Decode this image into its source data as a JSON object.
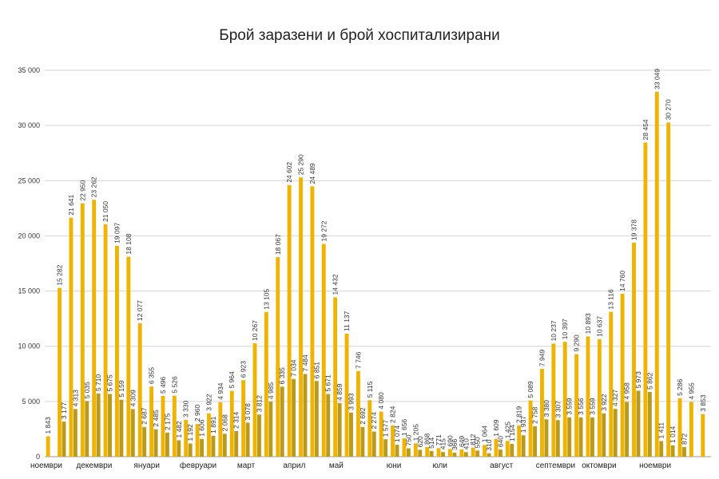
{
  "chart_data": {
    "type": "bar",
    "title": "Брой заразени и брой хоспитализирани",
    "xlabel": "",
    "ylabel": "",
    "ylim": [
      0,
      35000
    ],
    "yticks": [
      0,
      5000,
      10000,
      15000,
      20000,
      25000,
      30000,
      35000
    ],
    "ytick_labels": [
      "0",
      "5 000",
      "10 000",
      "15 000",
      "20 000",
      "25 000",
      "30 000",
      "35 000"
    ],
    "grid": true,
    "legend": "none",
    "series": [
      {
        "name": "Брой заразени",
        "color": "#f0b400",
        "values": [
          1843,
          15282,
          21641,
          22950,
          23262,
          21050,
          19097,
          18108,
          12077,
          6355,
          5496,
          5526,
          3330,
          2960,
          3922,
          4934,
          5964,
          6923,
          10267,
          13105,
          18067,
          24602,
          25290,
          24489,
          19272,
          14432,
          11137,
          7746,
          5115,
          4080,
          2824,
          1656,
          1205,
          868,
          771,
          690,
          649,
          812,
          1064,
          1609,
          1425,
          2819,
          5089,
          7949,
          10237,
          10397,
          9290,
          10893,
          10637,
          13116,
          14760,
          19378,
          28454,
          33049,
          30270,
          5286,
          4955,
          3853
        ],
        "labels": [
          "1 843",
          "15 282",
          "21 641",
          "22 950",
          "23 262",
          "21 050",
          "19 097",
          "18 108",
          "12 077",
          "6 355",
          "5 496",
          "5 526",
          "3 330",
          "2 960",
          "3 922",
          "4 934",
          "5 964",
          "6 923",
          "10 267",
          "13 105",
          "18 067",
          "24 602",
          "25 290",
          "24 489",
          "19 272",
          "14 432",
          "11 137",
          "7 746",
          "5 115",
          "4 080",
          "2 824",
          "1 656",
          "1 205",
          "868",
          "771",
          "690",
          "649",
          "812",
          "1 064",
          "1 609",
          "1 425",
          "2 819",
          "5 089",
          "7 949",
          "10 237",
          "10 397",
          "9 290",
          "10 893",
          "10 637",
          "13 116",
          "14 760",
          "19 378",
          "28 454",
          "33 049",
          "30 270",
          "5 286",
          "4 955",
          "3 853"
        ]
      },
      {
        "name": "Брой хоспитализирани",
        "color": "#b99a1a",
        "values": [
          null,
          3177,
          4313,
          5035,
          5710,
          5675,
          5159,
          4309,
          2687,
          2485,
          2175,
          1482,
          1192,
          1606,
          1891,
          2068,
          2314,
          3078,
          3812,
          4985,
          6335,
          7034,
          7484,
          6851,
          5671,
          4859,
          3993,
          2692,
          2274,
          1577,
          1074,
          750,
          620,
          514,
          415,
          366,
          410,
          550,
          310,
          640,
          1154,
          1937,
          2758,
          3380,
          3307,
          3559,
          3556,
          3559,
          3922,
          4327,
          4958,
          5973,
          5862,
          1411,
          1014,
          872,
          null,
          null
        ],
        "labels": [
          "",
          "3 177",
          "4 313",
          "5 035",
          "5 710",
          "5 675",
          "5 159",
          "4 309",
          "2 687",
          "2 485",
          "2 175",
          "1 482",
          "1 192",
          "1 606",
          "1 891",
          "2 068",
          "2 314",
          "3 078",
          "3 812",
          "4 985",
          "6 335",
          "7 034",
          "7 484",
          "6 851",
          "5 671",
          "4 859",
          "3 993",
          "2 692",
          "2 274",
          "1 577",
          "1 074",
          "750",
          "620",
          "514",
          "415",
          "366",
          "410",
          "550",
          "310",
          "640",
          "1 154",
          "1 937",
          "2 758",
          "3 380",
          "3 307",
          "3 559",
          "3 556",
          "3 559",
          "3 922",
          "4 327",
          "4 958",
          "5 973",
          "5 862",
          "1 411",
          "1 014",
          "872",
          "",
          ""
        ]
      }
    ],
    "x_month_labels": [
      {
        "label": "ноември",
        "start_index": 0
      },
      {
        "label": "декември",
        "start_index": 4
      },
      {
        "label": "януари",
        "start_index": 9
      },
      {
        "label": "февруари",
        "start_index": 13
      },
      {
        "label": "март",
        "start_index": 18
      },
      {
        "label": "април",
        "start_index": 22
      },
      {
        "label": "май",
        "start_index": 26
      },
      {
        "label": "юни",
        "start_index": 31
      },
      {
        "label": "юли",
        "start_index": 35
      },
      {
        "label": "август",
        "start_index": 40
      },
      {
        "label": "септември",
        "start_index": 44
      },
      {
        "label": "октомври",
        "start_index": 48
      },
      {
        "label": "ноември",
        "start_index": 53
      }
    ]
  }
}
